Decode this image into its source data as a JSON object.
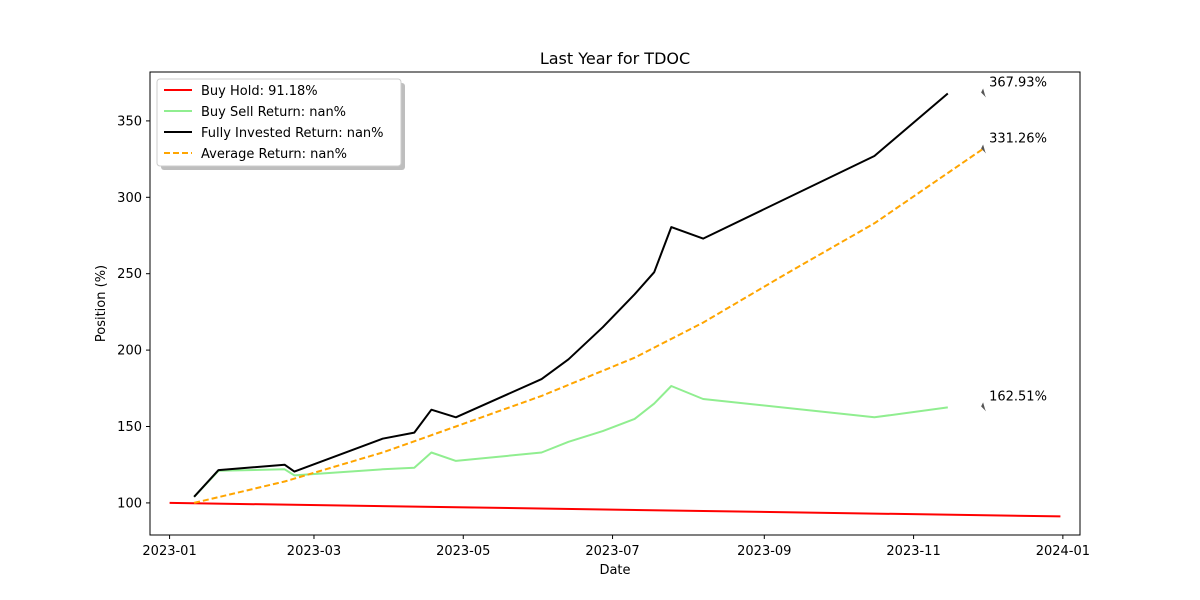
{
  "chart_data": {
    "type": "line",
    "title": "Last Year for TDOC",
    "xlabel": "Date",
    "ylabel": "Position (%)",
    "xlim": [
      "2022-12-24",
      "2024-01-08"
    ],
    "ylim": [
      79,
      382
    ],
    "x_ticks": [
      "2023-01",
      "2023-03",
      "2023-05",
      "2023-07",
      "2023-09",
      "2023-11",
      "2024-01"
    ],
    "y_ticks": [
      100,
      150,
      200,
      250,
      300,
      350
    ],
    "grid": false,
    "legend_position": "upper-left",
    "series": [
      {
        "name": "Buy Hold: 91.18%",
        "color": "#ff0000",
        "style": "solid",
        "x": [
          "2023-01-01",
          "2023-12-31"
        ],
        "y": [
          100,
          91.18
        ]
      },
      {
        "name": "Buy Sell Return: nan%",
        "color": "#90ee90",
        "style": "solid",
        "x": [
          "2023-01-11",
          "2023-01-21",
          "2023-02-17",
          "2023-02-21",
          "2023-03-29",
          "2023-04-11",
          "2023-04-18",
          "2023-04-28",
          "2023-06-02",
          "2023-06-13",
          "2023-06-27",
          "2023-07-10",
          "2023-07-18",
          "2023-07-25",
          "2023-08-07",
          "2023-10-16",
          "2023-11-15"
        ],
        "y": [
          104,
          121,
          122,
          118,
          122,
          123,
          133,
          127.5,
          133,
          140,
          147,
          155,
          165,
          176.5,
          168,
          156,
          162.51
        ]
      },
      {
        "name": "Fully Invested Return: nan%",
        "color": "#000000",
        "style": "solid",
        "x": [
          "2023-01-11",
          "2023-01-21",
          "2023-02-17",
          "2023-02-21",
          "2023-03-29",
          "2023-04-11",
          "2023-04-18",
          "2023-04-28",
          "2023-06-02",
          "2023-06-13",
          "2023-06-27",
          "2023-07-10",
          "2023-07-18",
          "2023-07-25",
          "2023-08-07",
          "2023-10-16",
          "2023-11-15"
        ],
        "y": [
          104,
          121.5,
          125,
          120.5,
          142,
          146,
          161,
          156,
          181,
          194,
          215,
          236.5,
          251,
          280.5,
          273,
          327,
          367.93
        ]
      },
      {
        "name": "Average Return: nan%",
        "color": "#ffa500",
        "style": "dashed",
        "x": [
          "2023-01-11",
          "2023-02-17",
          "2023-03-29",
          "2023-04-28",
          "2023-06-02",
          "2023-07-10",
          "2023-08-07",
          "2023-09-10",
          "2023-10-16",
          "2023-11-29"
        ],
        "y": [
          100,
          114,
          133,
          150,
          170,
          195,
          218,
          250,
          283,
          331.26
        ]
      }
    ],
    "annotations": [
      {
        "text": "367.93%",
        "x": "2023-11-29",
        "y": 367.93
      },
      {
        "text": "331.26%",
        "x": "2023-11-29",
        "y": 331.26
      },
      {
        "text": "162.51%",
        "x": "2023-11-29",
        "y": 162.51
      }
    ]
  }
}
